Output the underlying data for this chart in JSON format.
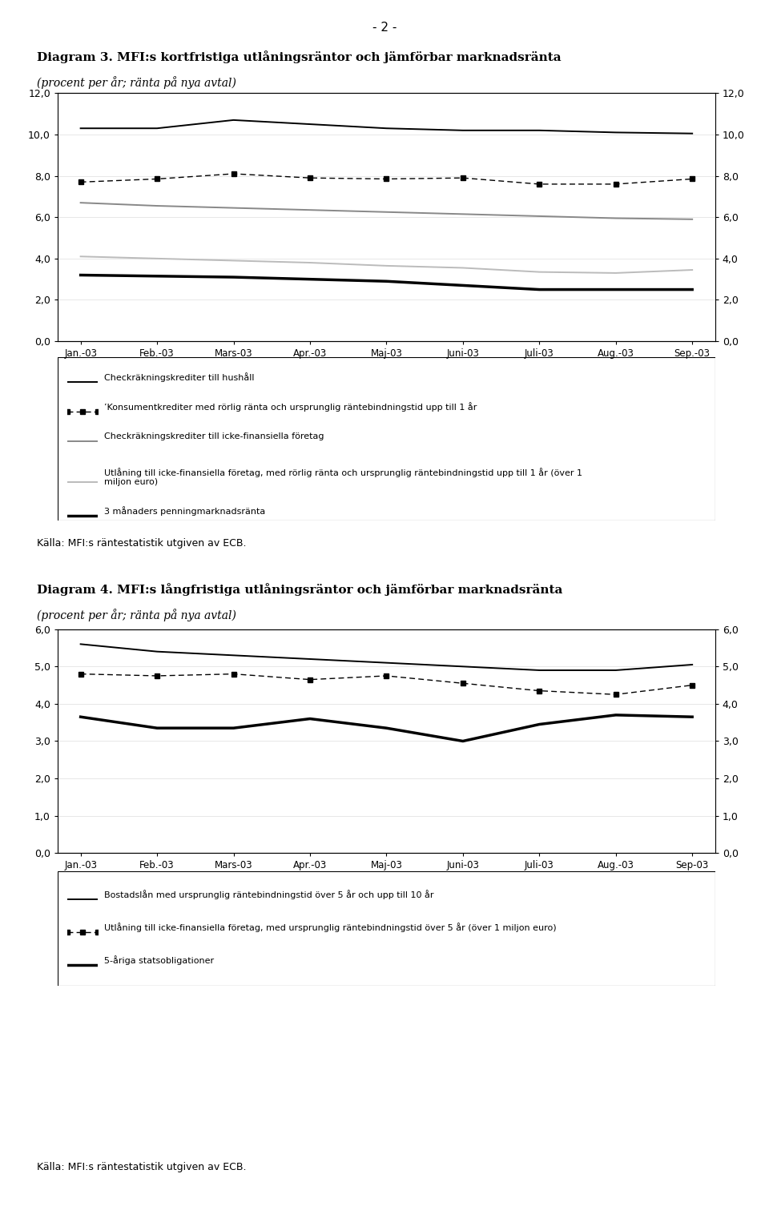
{
  "page_header": "- 2 -",
  "diagram3": {
    "title": "Diagram 3. MFI:s kortfristiga utlåningsräntor och jämförbar marknadsränta",
    "subtitle": "(procent per år; ränta på nya avtal)",
    "x_labels": [
      "Jan.-03",
      "Feb.-03",
      "Mars-03",
      "Apr.-03",
      "Maj-03",
      "Juni-03",
      "Juli-03",
      "Aug.-03",
      "Sep.-03"
    ],
    "ylim": [
      0.0,
      12.0
    ],
    "yticks": [
      0.0,
      2.0,
      4.0,
      6.0,
      8.0,
      10.0,
      12.0
    ],
    "series": {
      "checkrakn_hushall": {
        "label": "Checkräkningskrediter till hushåll",
        "color": "#000000",
        "linewidth": 1.4,
        "values": [
          10.3,
          10.3,
          10.7,
          10.5,
          10.3,
          10.2,
          10.2,
          10.1,
          10.05
        ]
      },
      "konsumentkrediter": {
        "label": "’Konsumentkrediter med rörlig ränta och ursprunglig räntebindningstid upp till 1 år",
        "color": "#000000",
        "linewidth": 1.0,
        "markersize": 4.5,
        "values": [
          7.7,
          7.85,
          8.1,
          7.9,
          7.85,
          7.9,
          7.6,
          7.6,
          7.85
        ]
      },
      "checkrakn_icke": {
        "label": "Checkräkningskrediter till icke-finansiella företag",
        "color": "#888888",
        "linewidth": 1.4,
        "values": [
          6.7,
          6.55,
          6.45,
          6.35,
          6.25,
          6.15,
          6.05,
          5.95,
          5.9
        ]
      },
      "utlaning_icke": {
        "label": "Utlåning till icke-finansiella företag, med rörlig ränta och ursprunglig räntebindningstid upp till 1 år (över 1 miljon euro)",
        "color": "#bbbbbb",
        "linewidth": 1.4,
        "values": [
          4.1,
          4.0,
          3.9,
          3.8,
          3.65,
          3.55,
          3.35,
          3.3,
          3.45
        ]
      },
      "penningmarknad": {
        "label": "3 månaders penningmarknadsränta",
        "color": "#000000",
        "linewidth": 2.5,
        "values": [
          3.2,
          3.15,
          3.1,
          3.0,
          2.9,
          2.7,
          2.5,
          2.5,
          2.5
        ]
      }
    },
    "source": "Källa: MFI:s räntestatistik utgiven av ECB."
  },
  "diagram4": {
    "title": "Diagram 4. MFI:s långfristiga utlåningsräntor och jämförbar marknadsränta",
    "subtitle": "(procent per år; ränta på nya avtal)",
    "x_labels": [
      "Jan.-03",
      "Feb.-03",
      "Mars-03",
      "Apr.-03",
      "Maj-03",
      "Juni-03",
      "Juli-03",
      "Aug.-03",
      "Sep-03"
    ],
    "ylim": [
      0.0,
      6.0
    ],
    "yticks": [
      0.0,
      1.0,
      2.0,
      3.0,
      4.0,
      5.0,
      6.0
    ],
    "series": {
      "bostadslan": {
        "label": "Bostadslån med ursprunglig räntebindningstid över 5 år och upp till 10 år",
        "color": "#000000",
        "linewidth": 1.4,
        "values": [
          5.6,
          5.4,
          5.3,
          5.2,
          5.1,
          5.0,
          4.9,
          4.9,
          5.05
        ]
      },
      "utlaning_icke_5ar": {
        "label": "Utlåning till icke-finansiella företag, med ursprunglig räntebindningstid över 5 år (över 1 miljon euro)",
        "color": "#000000",
        "linewidth": 1.0,
        "markersize": 4.5,
        "values": [
          4.8,
          4.75,
          4.8,
          4.65,
          4.75,
          4.55,
          4.35,
          4.25,
          4.5
        ]
      },
      "statsobligationer": {
        "label": "5-åriga statsobligationer",
        "color": "#000000",
        "linewidth": 2.5,
        "values": [
          3.65,
          3.35,
          3.35,
          3.6,
          3.35,
          3.0,
          3.45,
          3.7,
          3.65
        ]
      }
    },
    "source": "Källa: MFI:s räntestatistik utgiven av ECB."
  }
}
